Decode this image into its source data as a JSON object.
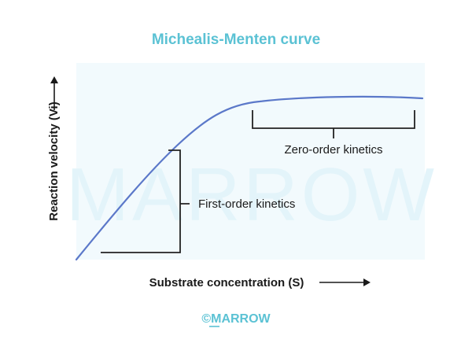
{
  "title": "Michealis-Menten curve",
  "x_axis_label": "Substrate concentration (S)",
  "y_axis_label": "Reaction velocity (Vi)",
  "annotations": {
    "first_order": "First-order kinetics",
    "zero_order": "Zero-order kinetics"
  },
  "watermark_text": "MARROW",
  "footer_brand": "©MARROW",
  "colors": {
    "title": "#5bc2d4",
    "plot_background": "#f2fafd",
    "watermark": "#e3f4fa",
    "curve": "#5b78c9",
    "bracket": "#222222",
    "axis_text": "#1a1a1a",
    "brand": "#5bc2d4"
  },
  "icons": {
    "y_arrow": "arrow-up-icon",
    "x_arrow": "arrow-right-icon"
  }
}
